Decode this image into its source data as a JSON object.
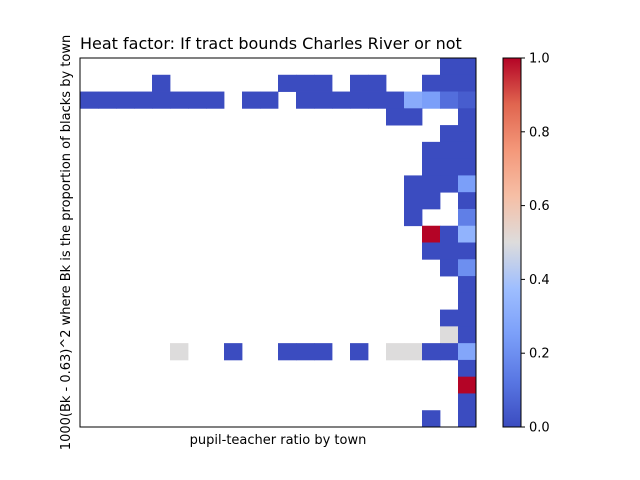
{
  "chart_data": {
    "type": "heatmap",
    "title": "Heat factor: If tract bounds Charles River or not",
    "xlabel": "pupil-teacher ratio by town",
    "ylabel": "1000(Bk - 0.63)^2 where Bk is the proportion of blacks by town",
    "x_ticks_shown": false,
    "y_ticks_shown": false,
    "colormap": "coolwarm",
    "colorbar": {
      "range": [
        0,
        1
      ],
      "ticks": [
        "0.0",
        "0.2",
        "0.4",
        "0.6",
        "0.8",
        "1.0"
      ]
    },
    "grid_shape": {
      "rows": 22,
      "cols": 22
    },
    "cells": [
      {
        "r": 0,
        "c": 20,
        "v": 0.0
      },
      {
        "r": 0,
        "c": 21,
        "v": 0.0
      },
      {
        "r": 1,
        "c": 4,
        "v": 0.0
      },
      {
        "r": 1,
        "c": 11,
        "v": 0.0
      },
      {
        "r": 1,
        "c": 12,
        "v": 0.0
      },
      {
        "r": 1,
        "c": 13,
        "v": 0.0
      },
      {
        "r": 1,
        "c": 15,
        "v": 0.0
      },
      {
        "r": 1,
        "c": 16,
        "v": 0.0
      },
      {
        "r": 1,
        "c": 19,
        "v": 0.0
      },
      {
        "r": 1,
        "c": 20,
        "v": 0.0
      },
      {
        "r": 1,
        "c": 21,
        "v": 0.0
      },
      {
        "r": 2,
        "c": 0,
        "v": 0.0
      },
      {
        "r": 2,
        "c": 1,
        "v": 0.0
      },
      {
        "r": 2,
        "c": 2,
        "v": 0.0
      },
      {
        "r": 2,
        "c": 3,
        "v": 0.0
      },
      {
        "r": 2,
        "c": 4,
        "v": 0.0
      },
      {
        "r": 2,
        "c": 5,
        "v": 0.0
      },
      {
        "r": 2,
        "c": 6,
        "v": 0.0
      },
      {
        "r": 2,
        "c": 7,
        "v": 0.0
      },
      {
        "r": 2,
        "c": 9,
        "v": 0.0
      },
      {
        "r": 2,
        "c": 10,
        "v": 0.0
      },
      {
        "r": 2,
        "c": 12,
        "v": 0.0
      },
      {
        "r": 2,
        "c": 13,
        "v": 0.0
      },
      {
        "r": 2,
        "c": 14,
        "v": 0.0
      },
      {
        "r": 2,
        "c": 15,
        "v": 0.0
      },
      {
        "r": 2,
        "c": 16,
        "v": 0.0
      },
      {
        "r": 2,
        "c": 17,
        "v": 0.0
      },
      {
        "r": 2,
        "c": 18,
        "v": 0.3
      },
      {
        "r": 2,
        "c": 19,
        "v": 0.25
      },
      {
        "r": 2,
        "c": 20,
        "v": 0.1
      },
      {
        "r": 2,
        "c": 21,
        "v": 0.05
      },
      {
        "r": 3,
        "c": 17,
        "v": 0.0
      },
      {
        "r": 3,
        "c": 18,
        "v": 0.0
      },
      {
        "r": 3,
        "c": 21,
        "v": 0.0
      },
      {
        "r": 4,
        "c": 20,
        "v": 0.0
      },
      {
        "r": 4,
        "c": 21,
        "v": 0.0
      },
      {
        "r": 5,
        "c": 19,
        "v": 0.0
      },
      {
        "r": 5,
        "c": 20,
        "v": 0.0
      },
      {
        "r": 5,
        "c": 21,
        "v": 0.0
      },
      {
        "r": 6,
        "c": 19,
        "v": 0.0
      },
      {
        "r": 6,
        "c": 20,
        "v": 0.0
      },
      {
        "r": 6,
        "c": 21,
        "v": 0.0
      },
      {
        "r": 7,
        "c": 18,
        "v": 0.0
      },
      {
        "r": 7,
        "c": 19,
        "v": 0.0
      },
      {
        "r": 7,
        "c": 20,
        "v": 0.0
      },
      {
        "r": 7,
        "c": 21,
        "v": 0.25
      },
      {
        "r": 8,
        "c": 18,
        "v": 0.0
      },
      {
        "r": 8,
        "c": 19,
        "v": 0.0
      },
      {
        "r": 8,
        "c": 21,
        "v": 0.0
      },
      {
        "r": 9,
        "c": 18,
        "v": 0.0
      },
      {
        "r": 9,
        "c": 21,
        "v": 0.15
      },
      {
        "r": 10,
        "c": 19,
        "v": 1.0
      },
      {
        "r": 10,
        "c": 20,
        "v": 0.0
      },
      {
        "r": 10,
        "c": 21,
        "v": 0.33
      },
      {
        "r": 11,
        "c": 19,
        "v": 0.0
      },
      {
        "r": 11,
        "c": 20,
        "v": 0.0
      },
      {
        "r": 11,
        "c": 21,
        "v": 0.0
      },
      {
        "r": 12,
        "c": 20,
        "v": 0.0
      },
      {
        "r": 12,
        "c": 21,
        "v": 0.2
      },
      {
        "r": 13,
        "c": 21,
        "v": 0.0
      },
      {
        "r": 14,
        "c": 21,
        "v": 0.0
      },
      {
        "r": 15,
        "c": 20,
        "v": 0.0
      },
      {
        "r": 15,
        "c": 21,
        "v": 0.0
      },
      {
        "r": 16,
        "c": 20,
        "v": 0.5
      },
      {
        "r": 16,
        "c": 21,
        "v": 0.0
      },
      {
        "r": 17,
        "c": 5,
        "v": 0.5
      },
      {
        "r": 17,
        "c": 8,
        "v": 0.0
      },
      {
        "r": 17,
        "c": 11,
        "v": 0.0
      },
      {
        "r": 17,
        "c": 12,
        "v": 0.0
      },
      {
        "r": 17,
        "c": 13,
        "v": 0.0
      },
      {
        "r": 17,
        "c": 15,
        "v": 0.0
      },
      {
        "r": 17,
        "c": 17,
        "v": 0.5
      },
      {
        "r": 17,
        "c": 18,
        "v": 0.5
      },
      {
        "r": 17,
        "c": 19,
        "v": 0.0
      },
      {
        "r": 17,
        "c": 20,
        "v": 0.0
      },
      {
        "r": 17,
        "c": 21,
        "v": 0.28
      },
      {
        "r": 18,
        "c": 21,
        "v": 0.0
      },
      {
        "r": 19,
        "c": 21,
        "v": 1.0
      },
      {
        "r": 20,
        "c": 21,
        "v": 0.0
      },
      {
        "r": 21,
        "c": 19,
        "v": 0.0
      },
      {
        "r": 21,
        "c": 21,
        "v": 0.0
      }
    ]
  }
}
